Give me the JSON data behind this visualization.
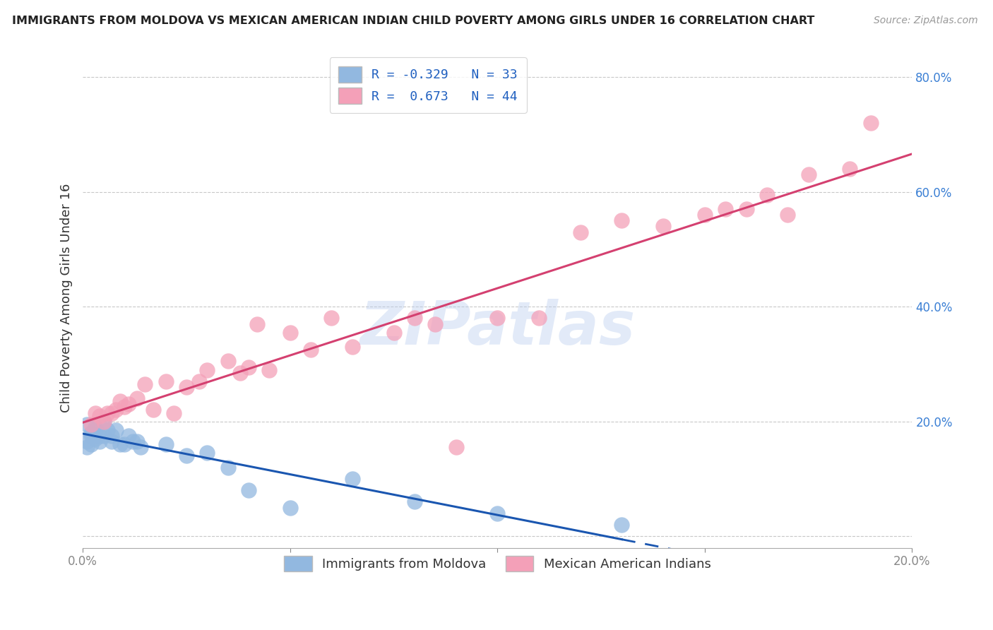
{
  "title": "IMMIGRANTS FROM MOLDOVA VS MEXICAN AMERICAN INDIAN CHILD POVERTY AMONG GIRLS UNDER 16 CORRELATION CHART",
  "source": "Source: ZipAtlas.com",
  "ylabel": "Child Poverty Among Girls Under 16",
  "xlim": [
    0.0,
    0.2
  ],
  "ylim": [
    -0.02,
    0.85
  ],
  "ytick_vals": [
    0.0,
    0.2,
    0.4,
    0.6,
    0.8
  ],
  "ytick_labels": [
    "",
    "20.0%",
    "40.0%",
    "60.0%",
    "80.0%"
  ],
  "xtick_vals": [
    0.0,
    0.05,
    0.1,
    0.15,
    0.2
  ],
  "xtick_labels": [
    "0.0%",
    "",
    "",
    "",
    "20.0%"
  ],
  "series1_label": "Immigrants from Moldova",
  "series2_label": "Mexican American Indians",
  "series1_color": "#92b8e0",
  "series2_color": "#f4a0b8",
  "trendline1_color": "#1a56b0",
  "trendline2_color": "#d44070",
  "watermark": "ZIPatlas",
  "background_color": "#ffffff",
  "grid_color": "#c8c8c8",
  "legend_r1": "R = -0.329",
  "legend_n1": "N = 33",
  "legend_r2": "R =  0.673",
  "legend_n2": "N = 44",
  "series1_x": [
    0.001,
    0.001,
    0.001,
    0.002,
    0.002,
    0.002,
    0.003,
    0.003,
    0.003,
    0.004,
    0.004,
    0.005,
    0.005,
    0.006,
    0.007,
    0.007,
    0.008,
    0.009,
    0.01,
    0.011,
    0.012,
    0.013,
    0.014,
    0.02,
    0.025,
    0.03,
    0.035,
    0.04,
    0.05,
    0.065,
    0.08,
    0.1,
    0.13
  ],
  "series1_y": [
    0.195,
    0.165,
    0.155,
    0.175,
    0.18,
    0.16,
    0.19,
    0.185,
    0.17,
    0.175,
    0.165,
    0.2,
    0.175,
    0.185,
    0.175,
    0.165,
    0.185,
    0.16,
    0.16,
    0.175,
    0.165,
    0.165,
    0.155,
    0.16,
    0.14,
    0.145,
    0.12,
    0.08,
    0.05,
    0.1,
    0.06,
    0.04,
    0.02
  ],
  "series1_trendline_solid_xmax": 0.13,
  "series2_x": [
    0.002,
    0.003,
    0.004,
    0.005,
    0.006,
    0.007,
    0.008,
    0.009,
    0.01,
    0.011,
    0.013,
    0.015,
    0.017,
    0.02,
    0.022,
    0.025,
    0.028,
    0.03,
    0.035,
    0.038,
    0.04,
    0.042,
    0.045,
    0.05,
    0.055,
    0.06,
    0.065,
    0.075,
    0.08,
    0.085,
    0.09,
    0.1,
    0.11,
    0.12,
    0.13,
    0.14,
    0.15,
    0.155,
    0.16,
    0.165,
    0.17,
    0.175,
    0.185,
    0.19
  ],
  "series2_y": [
    0.195,
    0.215,
    0.21,
    0.2,
    0.215,
    0.215,
    0.22,
    0.235,
    0.225,
    0.23,
    0.24,
    0.265,
    0.22,
    0.27,
    0.215,
    0.26,
    0.27,
    0.29,
    0.305,
    0.285,
    0.295,
    0.37,
    0.29,
    0.355,
    0.325,
    0.38,
    0.33,
    0.355,
    0.38,
    0.37,
    0.155,
    0.38,
    0.38,
    0.53,
    0.55,
    0.54,
    0.56,
    0.57,
    0.57,
    0.595,
    0.56,
    0.63,
    0.64,
    0.72
  ]
}
